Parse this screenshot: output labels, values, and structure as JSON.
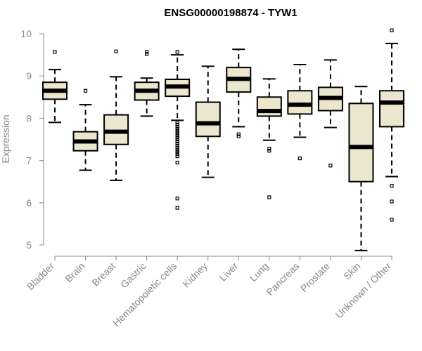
{
  "chart_data": {
    "type": "boxplot",
    "title": "ENSG00000198874 - TYW1",
    "xlabel": "",
    "ylabel": "Expression",
    "ylim": [
      4.8,
      10.2
    ],
    "yticks": [
      5,
      6,
      7,
      8,
      9,
      10
    ],
    "grid": false,
    "box_fill": "#ede6cf",
    "box_stroke": "#000000",
    "axis_color": "#888888",
    "categories": [
      "Bladder",
      "Brain",
      "Breast",
      "Gastric",
      "Hematopoietic cells",
      "Kidney",
      "Liver",
      "Lung",
      "Pancreas",
      "Prostate",
      "Skin",
      "Unknown / Other"
    ],
    "series": [
      {
        "name": "Bladder",
        "whisker_low": 7.9,
        "q1": 8.45,
        "median": 8.65,
        "q3": 8.85,
        "whisker_high": 9.15,
        "outliers": [
          9.57
        ]
      },
      {
        "name": "Brain",
        "whisker_low": 6.77,
        "q1": 7.23,
        "median": 7.45,
        "q3": 7.68,
        "whisker_high": 8.32,
        "outliers": [
          8.65
        ]
      },
      {
        "name": "Breast",
        "whisker_low": 6.53,
        "q1": 7.38,
        "median": 7.68,
        "q3": 8.08,
        "whisker_high": 8.98,
        "outliers": [
          9.58
        ]
      },
      {
        "name": "Gastric",
        "whisker_low": 8.05,
        "q1": 8.43,
        "median": 8.65,
        "q3": 8.85,
        "whisker_high": 8.95,
        "outliers": [
          9.52,
          9.57
        ]
      },
      {
        "name": "Hematopoietic cells",
        "whisker_low": 7.95,
        "q1": 8.52,
        "median": 8.75,
        "q3": 8.92,
        "whisker_high": 9.5,
        "outliers": [
          9.57,
          7.9,
          7.85,
          7.8,
          7.75,
          7.7,
          7.65,
          7.6,
          7.55,
          7.5,
          7.45,
          7.4,
          7.35,
          7.3,
          7.25,
          7.2,
          7.15,
          7.1,
          6.95,
          6.1,
          5.88
        ]
      },
      {
        "name": "Kidney",
        "whisker_low": 6.6,
        "q1": 7.57,
        "median": 7.88,
        "q3": 8.38,
        "whisker_high": 9.23,
        "outliers": []
      },
      {
        "name": "Liver",
        "whisker_low": 7.8,
        "q1": 8.62,
        "median": 8.93,
        "q3": 9.2,
        "whisker_high": 9.63,
        "outliers": [
          7.62,
          7.57
        ]
      },
      {
        "name": "Lung",
        "whisker_low": 7.48,
        "q1": 8.05,
        "median": 8.17,
        "q3": 8.5,
        "whisker_high": 8.93,
        "outliers": [
          7.28,
          7.23,
          6.13
        ]
      },
      {
        "name": "Pancreas",
        "whisker_low": 7.55,
        "q1": 8.1,
        "median": 8.32,
        "q3": 8.65,
        "whisker_high": 9.27,
        "outliers": [
          7.05
        ]
      },
      {
        "name": "Prostate",
        "whisker_low": 7.78,
        "q1": 8.18,
        "median": 8.48,
        "q3": 8.73,
        "whisker_high": 9.38,
        "outliers": [
          6.88
        ]
      },
      {
        "name": "Skin",
        "whisker_low": 4.87,
        "q1": 6.5,
        "median": 7.32,
        "q3": 8.35,
        "whisker_high": 8.75,
        "outliers": []
      },
      {
        "name": "Unknown / Other",
        "whisker_low": 6.62,
        "q1": 7.8,
        "median": 8.37,
        "q3": 8.65,
        "whisker_high": 9.77,
        "outliers": [
          10.08,
          6.4,
          6.03,
          5.6
        ]
      }
    ]
  }
}
